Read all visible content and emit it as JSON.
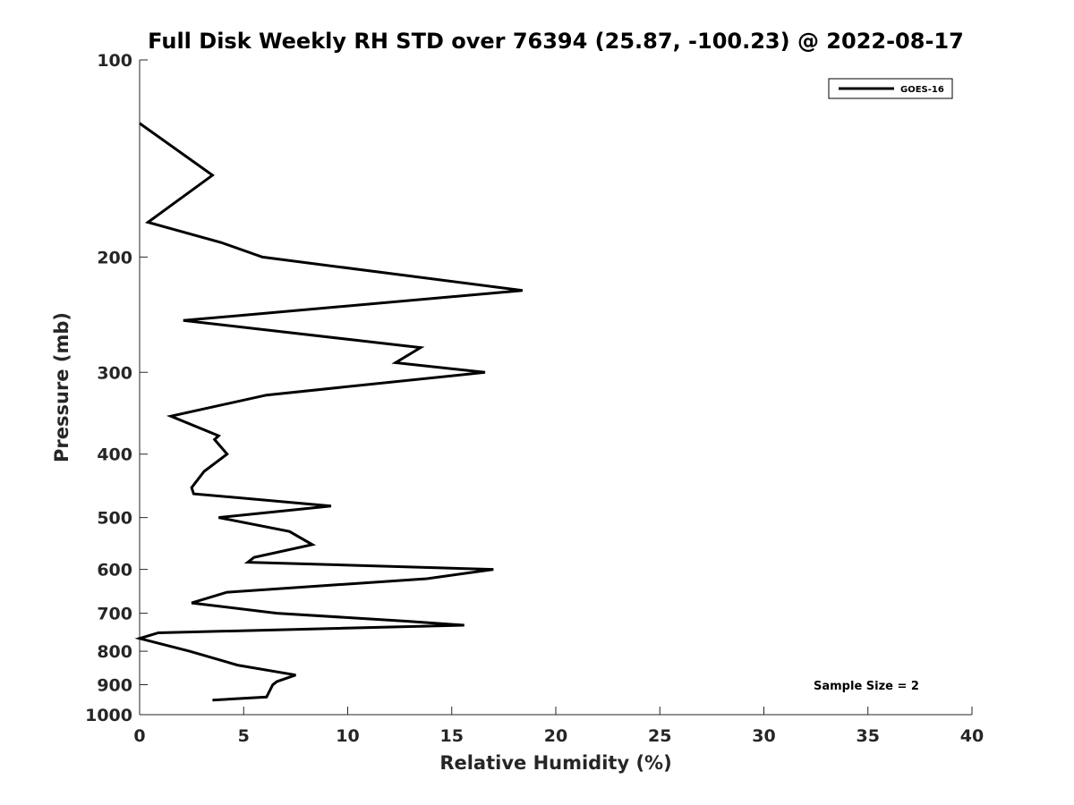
{
  "chart_data": {
    "type": "line",
    "title": "Full Disk Weekly RH STD over 76394 (25.87, -100.23) @ 2022-08-17",
    "xlabel": "Relative Humidity (%)",
    "ylabel": "Pressure (mb)",
    "xlim": [
      0,
      40
    ],
    "ylim": [
      100,
      1000
    ],
    "y_scale": "log",
    "y_direction": "reversed",
    "grid": false,
    "legend_position": "top-right",
    "x_ticks": [
      0,
      5,
      10,
      15,
      20,
      25,
      30,
      35,
      40
    ],
    "y_ticks": [
      100,
      200,
      300,
      400,
      500,
      600,
      700,
      800,
      900,
      1000
    ],
    "series": [
      {
        "name": "GOES-16",
        "color": "#000000",
        "x": [
          0.0,
          3.5,
          0.4,
          3.9,
          5.9,
          18.4,
          2.1,
          13.5,
          12.3,
          16.6,
          6.1,
          1.5,
          3.8,
          3.6,
          4.2,
          3.1,
          2.5,
          2.6,
          9.2,
          3.8,
          7.2,
          8.3,
          5.5,
          5.2,
          17.0,
          13.8,
          4.2,
          2.5,
          6.6,
          12.9,
          15.6,
          0.9,
          0.0,
          2.4,
          4.7,
          7.5,
          6.6,
          6.4,
          6.1,
          3.5
        ],
        "y": [
          125,
          150,
          177,
          190,
          200,
          225,
          250,
          275,
          290,
          300,
          325,
          350,
          375,
          380,
          400,
          425,
          450,
          460,
          480,
          500,
          525,
          550,
          575,
          585,
          600,
          620,
          650,
          675,
          700,
          720,
          730,
          750,
          765,
          800,
          840,
          870,
          890,
          900,
          940,
          950
        ]
      }
    ],
    "annotations": [
      "Sample Size = 2"
    ]
  }
}
